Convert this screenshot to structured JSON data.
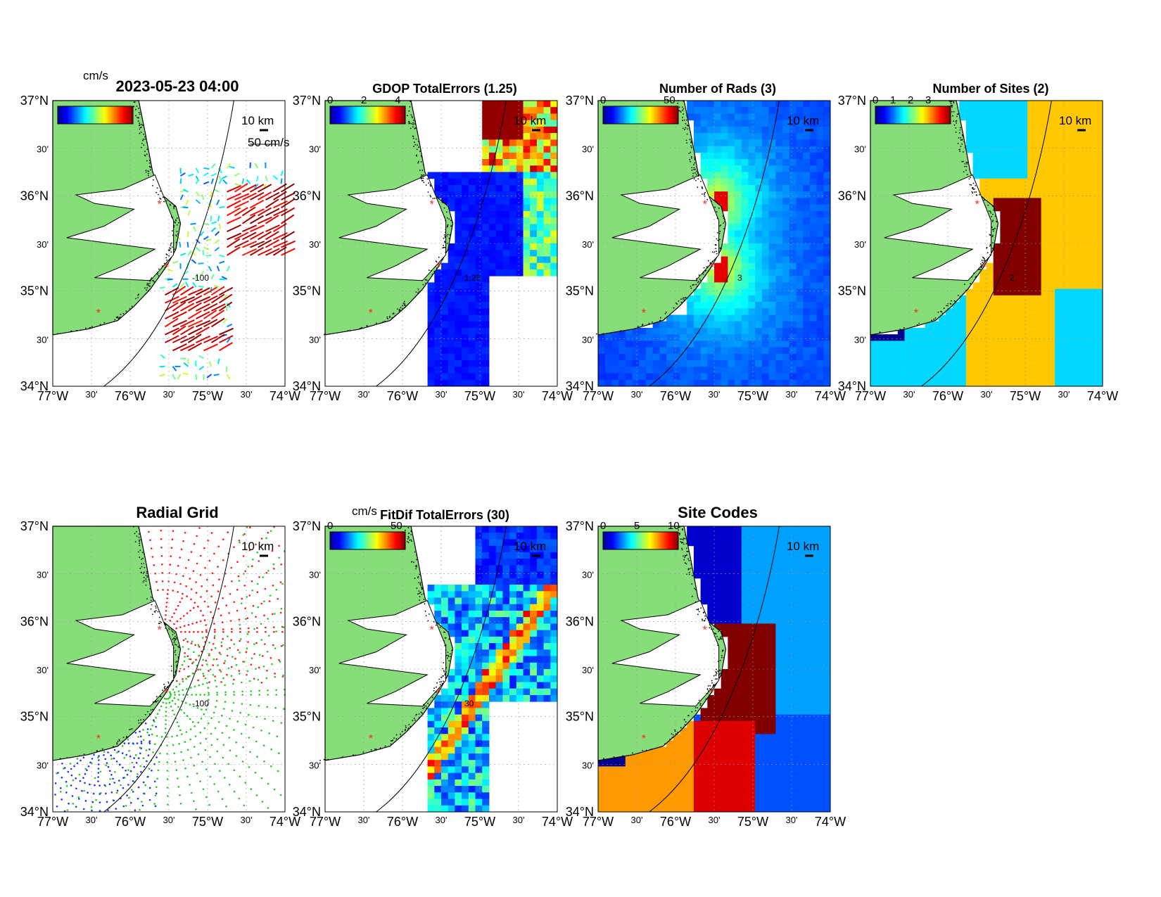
{
  "page": {
    "timestamp": "2023-05-23 04:00",
    "colors": {
      "land": "#86dd7a",
      "sites_marker": "#ff2020",
      "radial_red": "#ff1a1a",
      "radial_green": "#22cc22",
      "radial_blue": "#1a33ff"
    }
  },
  "panels": [
    {
      "title": "2023-05-23 04:00",
      "colorbar_unit": "cm/s",
      "colorbar_ticks": [],
      "scale_arrow_label": "50 cm/s",
      "scale_bar_label": "10 km",
      "contour_label": "-100",
      "content": "current-vectors"
    },
    {
      "title": "GDOP TotalErrors (1.25)",
      "colorbar_unit": "",
      "colorbar_ticks": [
        "0",
        "2",
        "4"
      ],
      "scale_bar_label": "10 km",
      "contour_label": "1.25",
      "content": "gdop-field"
    },
    {
      "title": "Number of Rads (3)",
      "colorbar_unit": "",
      "colorbar_ticks": [
        "0",
        "50"
      ],
      "scale_bar_label": "10 km",
      "contour_label": "3",
      "content": "rads-field"
    },
    {
      "title": "Number of Sites (2)",
      "colorbar_unit": "",
      "colorbar_ticks": [
        "0",
        "1",
        "2",
        "3"
      ],
      "scale_bar_label": "10 km",
      "contour_label": "2",
      "content": "sites-field"
    },
    {
      "title": "Radial Grid",
      "colorbar_unit": "",
      "colorbar_ticks": [],
      "scale_bar_label": "10 km",
      "contour_label": "-100",
      "content": "radial-grid"
    },
    {
      "title": "FitDif TotalErrors (30)",
      "colorbar_unit": "cm/s",
      "colorbar_ticks": [
        "0",
        "50"
      ],
      "scale_bar_label": "10 km",
      "contour_label": "30",
      "content": "fitdif-field"
    },
    {
      "title": "Site Codes",
      "colorbar_unit": "",
      "colorbar_ticks": [
        "0",
        "5",
        "10"
      ],
      "scale_bar_label": "10 km",
      "contour_label": "",
      "content": "site-codes-field"
    }
  ],
  "axes": {
    "lat_labels": [
      "37°N",
      "30'",
      "36°N",
      "30'",
      "35°N",
      "30'",
      "34°N"
    ],
    "lon_labels": [
      "77°W",
      "30'",
      "76°W",
      "30'",
      "75°W",
      "30'",
      "74°W"
    ],
    "lat_range": [
      34,
      37
    ],
    "lon_range": [
      -77,
      -74
    ]
  },
  "radar_sites": [
    {
      "lon": -75.62,
      "lat": 35.91
    },
    {
      "lon": -75.53,
      "lat": 35.25
    },
    {
      "lon": -76.41,
      "lat": 34.77
    }
  ]
}
